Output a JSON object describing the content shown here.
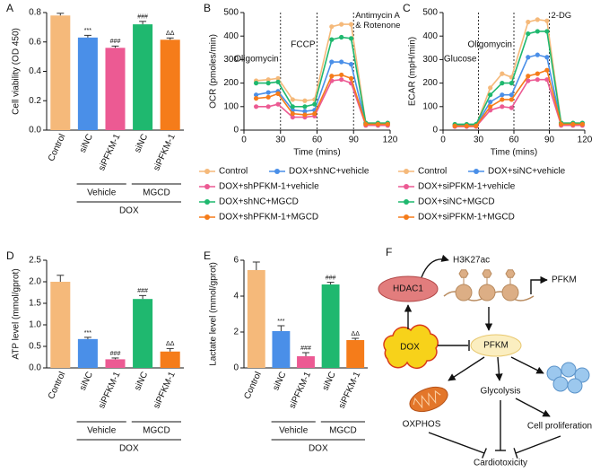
{
  "chart_data": [
    {
      "type": "bar",
      "panel": "A",
      "ylabel": "Cell viability (OD 450)",
      "categories": [
        "Control",
        "siNC",
        "siPFKM-1",
        "siNC",
        "siPFKM-1"
      ],
      "values": [
        0.78,
        0.63,
        0.56,
        0.72,
        0.615
      ],
      "errors": [
        0.015,
        0.015,
        0.012,
        0.02,
        0.012
      ],
      "annotations": [
        null,
        "***",
        "###",
        "###",
        "ΔΔ"
      ],
      "colors": [
        "#f5b97a",
        "#4a8fe8",
        "#ec5a93",
        "#1fb86f",
        "#f57c1a"
      ],
      "groups": [
        "Vehicle",
        "MGCD"
      ],
      "group": "DOX",
      "ylim": [
        0,
        0.8
      ],
      "yticks": [
        {
          "value": 0,
          "label": "0.0"
        },
        0.2,
        0.4,
        0.6,
        0.8
      ]
    },
    {
      "type": "line",
      "panel": "B",
      "xlabel": "Time (mins)",
      "ylabel": "OCR (pmoles/min)",
      "x": [
        10,
        20,
        28,
        40,
        50,
        58,
        72,
        80,
        88,
        100,
        110,
        118
      ],
      "series": [
        {
          "name": "Control",
          "color": "#f5b97a",
          "values": [
            210,
            215,
            220,
            130,
            125,
            130,
            440,
            450,
            450,
            30,
            30,
            30
          ]
        },
        {
          "name": "DOX+shNC+vehicle",
          "color": "#4a8fe8",
          "values": [
            150,
            160,
            165,
            85,
            80,
            85,
            290,
            290,
            280,
            25,
            25,
            25
          ]
        },
        {
          "name": "DOX+shPFKM-1+vehicle",
          "color": "#ec5a93",
          "values": [
            100,
            100,
            110,
            55,
            55,
            60,
            210,
            215,
            200,
            20,
            20,
            20
          ]
        },
        {
          "name": "DOX+shNC+MGCD",
          "color": "#1fb86f",
          "values": [
            200,
            200,
            205,
            100,
            100,
            110,
            385,
            395,
            390,
            30,
            30,
            30
          ]
        },
        {
          "name": "DOX+shPFKM-1+MGCD",
          "color": "#f57c1a",
          "values": [
            135,
            140,
            155,
            70,
            65,
            70,
            230,
            235,
            220,
            25,
            25,
            25
          ]
        }
      ],
      "events": [
        {
          "x": 30,
          "label": "Oligomycin"
        },
        {
          "x": 60,
          "label": "FCCP"
        },
        {
          "x": 90,
          "label": "Antimycin A & Rotenone"
        }
      ],
      "xlim": [
        0,
        120
      ],
      "xticks": [
        0,
        30,
        60,
        90,
        120
      ],
      "ylim": [
        0,
        500
      ],
      "yticks": [
        0,
        100,
        200,
        300,
        400,
        500
      ]
    },
    {
      "type": "line",
      "panel": "C",
      "xlabel": "Time (mins)",
      "ylabel": "ECAR (mpH/min)",
      "x": [
        10,
        20,
        28,
        40,
        50,
        58,
        72,
        80,
        88,
        100,
        110,
        118
      ],
      "series": [
        {
          "name": "Control",
          "color": "#f5b97a",
          "values": [
            20,
            20,
            20,
            180,
            240,
            225,
            460,
            470,
            465,
            30,
            30,
            30
          ]
        },
        {
          "name": "DOX+siNC+vehicle",
          "color": "#4a8fe8",
          "values": [
            20,
            20,
            20,
            120,
            150,
            150,
            310,
            320,
            310,
            25,
            25,
            25
          ]
        },
        {
          "name": "DOX+siPFKM-1+vehicle",
          "color": "#ec5a93",
          "values": [
            15,
            15,
            15,
            85,
            100,
            95,
            210,
            215,
            215,
            20,
            20,
            20
          ]
        },
        {
          "name": "DOX+siNC+MGCD",
          "color": "#1fb86f",
          "values": [
            25,
            25,
            25,
            150,
            200,
            200,
            410,
            420,
            420,
            30,
            30,
            30
          ]
        },
        {
          "name": "DOX+siPFKM-1+MGCD",
          "color": "#f57c1a",
          "values": [
            18,
            18,
            18,
            100,
            130,
            130,
            230,
            240,
            255,
            25,
            25,
            25
          ]
        }
      ],
      "events": [
        {
          "x": 30,
          "label": "Glucose"
        },
        {
          "x": 60,
          "label": "Oligomycin"
        },
        {
          "x": 90,
          "label": "2-DG"
        }
      ],
      "xlim": [
        0,
        120
      ],
      "xticks": [
        0,
        30,
        60,
        90,
        120
      ],
      "ylim": [
        0,
        500
      ],
      "yticks": [
        0,
        100,
        200,
        300,
        400,
        500
      ]
    },
    {
      "type": "bar",
      "panel": "D",
      "ylabel": "ATP level (mmol/gprot)",
      "categories": [
        "Control",
        "siNC",
        "siPFKM-1",
        "siNC",
        "siPFKM-1"
      ],
      "values": [
        2.0,
        0.67,
        0.2,
        1.6,
        0.38
      ],
      "errors": [
        0.15,
        0.04,
        0.03,
        0.08,
        0.07
      ],
      "annotations": [
        null,
        "***",
        "###",
        "###",
        "ΔΔ"
      ],
      "colors": [
        "#f5b97a",
        "#4a8fe8",
        "#ec5a93",
        "#1fb86f",
        "#f57c1a"
      ],
      "groups": [
        "Vehicle",
        "MGCD"
      ],
      "group": "DOX",
      "ylim": [
        0,
        2.5
      ],
      "yticks": [
        {
          "value": 0,
          "label": "0.0"
        },
        0.5,
        {
          "value": 1,
          "label": "1.0"
        },
        1.5,
        {
          "value": 2,
          "label": "2.0"
        },
        2.5
      ]
    },
    {
      "type": "bar",
      "panel": "E",
      "ylabel": "Lactate level (mmol/gprot)",
      "categories": [
        "Control",
        "siNC",
        "siPFKM-1",
        "siNC",
        "siPFKM-1"
      ],
      "values": [
        5.45,
        2.05,
        0.65,
        4.65,
        1.55
      ],
      "errors": [
        0.45,
        0.3,
        0.2,
        0.12,
        0.1
      ],
      "annotations": [
        null,
        "***",
        "###",
        "###",
        "ΔΔ"
      ],
      "colors": [
        "#f5b97a",
        "#4a8fe8",
        "#ec5a93",
        "#1fb86f",
        "#f57c1a"
      ],
      "groups": [
        "Vehicle",
        "MGCD"
      ],
      "group": "DOX",
      "ylim": [
        0,
        6
      ],
      "yticks": [
        0,
        2,
        4,
        6
      ]
    }
  ],
  "diagram": {
    "panel": "F",
    "hdac1": "HDAC1",
    "mark": "H3K27ac",
    "gene": "PFKM",
    "drug": "DOX",
    "protein": "PFKM",
    "oxphos": "OXPHOS",
    "glycolysis": "Glycolysis",
    "proliferation": "Cell proliferation",
    "outcome": "Cardiotoxicity"
  }
}
